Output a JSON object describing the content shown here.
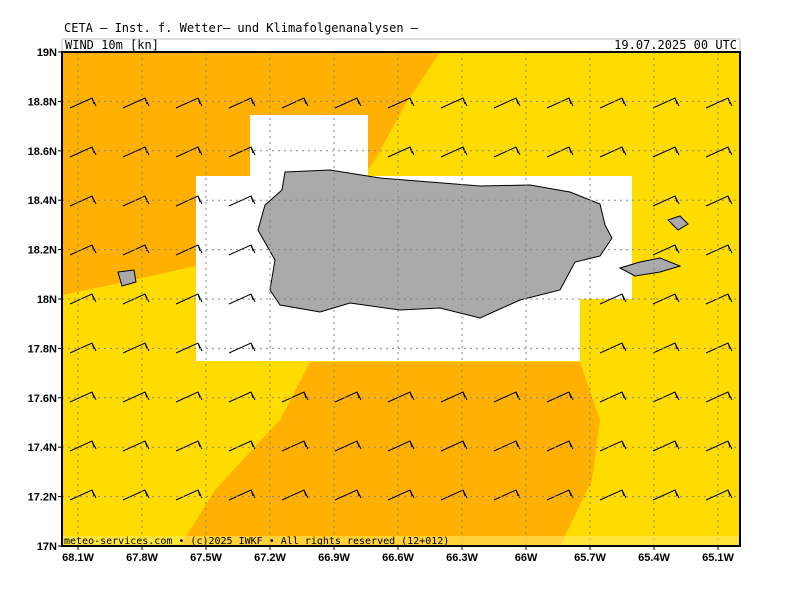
{
  "header": {
    "title": "CETA – Inst. f. Wetter– und Klimafolgenanalysen –",
    "field": "WIND_10m [kn]",
    "date": "19.07.2025 00 UTC"
  },
  "footer": "meteo-services.com • (c)2025 IWKF • All rights reserved (12+012)",
  "map": {
    "latlim": [
      17,
      19
    ],
    "lonlim": [
      -68.175,
      -64.997
    ],
    "latticks": [
      {
        "value": 19,
        "label": "19N"
      },
      {
        "value": 18.8,
        "label": "18.8N"
      },
      {
        "value": 18.6,
        "label": "18.6N"
      },
      {
        "value": 18.4,
        "label": "18.4N"
      },
      {
        "value": 18.2,
        "label": "18.2N"
      },
      {
        "value": 18,
        "label": "18N"
      },
      {
        "value": 17.8,
        "label": "17.8N"
      },
      {
        "value": 17.6,
        "label": "17.6N"
      },
      {
        "value": 17.4,
        "label": "17.4N"
      },
      {
        "value": 17.2,
        "label": "17.2N"
      },
      {
        "value": 17,
        "label": "17N"
      }
    ],
    "lonticks": [
      {
        "value": -68.1,
        "label": "68.1W"
      },
      {
        "value": -67.8,
        "label": "67.8W"
      },
      {
        "value": -67.5,
        "label": "67.5W"
      },
      {
        "value": -67.2,
        "label": "67.2W"
      },
      {
        "value": -66.9,
        "label": "66.9W"
      },
      {
        "value": -66.6,
        "label": "66.6W"
      },
      {
        "value": -66.3,
        "label": "66.3W"
      },
      {
        "value": -66,
        "label": "66W"
      },
      {
        "value": -65.7,
        "label": "65.7W"
      },
      {
        "value": -65.4,
        "label": "65.4W"
      },
      {
        "value": -65.1,
        "label": "65.1W"
      }
    ]
  }
}
